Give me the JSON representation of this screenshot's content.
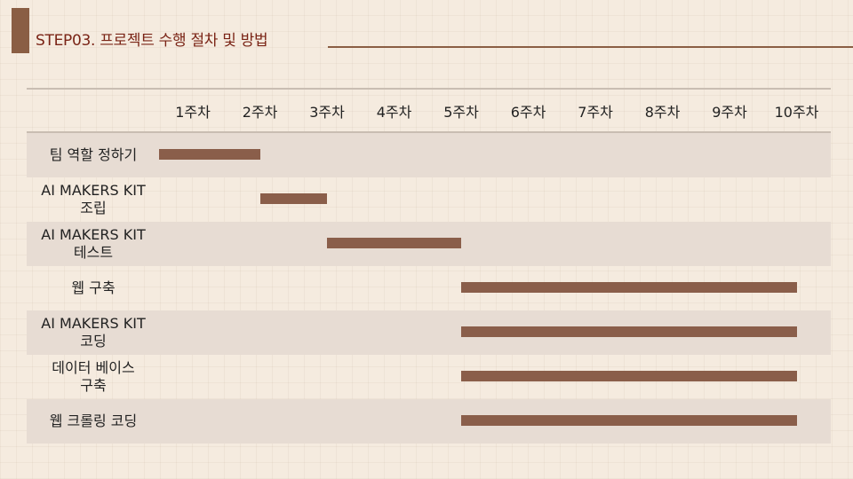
{
  "title": "STEP03. 프로젝트 수행 절차 및 방법",
  "chart_data": {
    "type": "gantt",
    "weeks": [
      "1주차",
      "2주차",
      "3주차",
      "4주차",
      "5주차",
      "6주차",
      "7주차",
      "8주차",
      "9주차",
      "10주차"
    ],
    "tasks": [
      {
        "label": "팀 역할 정하기",
        "start_week": 1,
        "end_week": 2.5
      },
      {
        "label": "AI MAKERS KIT\n조립",
        "start_week": 2.5,
        "end_week": 3.5
      },
      {
        "label": "AI MAKERS KIT\n테스트",
        "start_week": 3.5,
        "end_week": 5.5
      },
      {
        "label": "웹 구축",
        "start_week": 5.5,
        "end_week": 10.5
      },
      {
        "label": "AI MAKERS KIT\n코딩",
        "start_week": 5.5,
        "end_week": 10.5
      },
      {
        "label": "데이터 베이스\n구축",
        "start_week": 5.5,
        "end_week": 10.5
      },
      {
        "label": "웹 크롤링 코딩",
        "start_week": 5.5,
        "end_week": 10.5
      }
    ],
    "colors": {
      "bar": "#8a5e4a",
      "row_shade": "#e7dcd3",
      "accent": "#8a5e44",
      "title": "#7a2416"
    }
  }
}
